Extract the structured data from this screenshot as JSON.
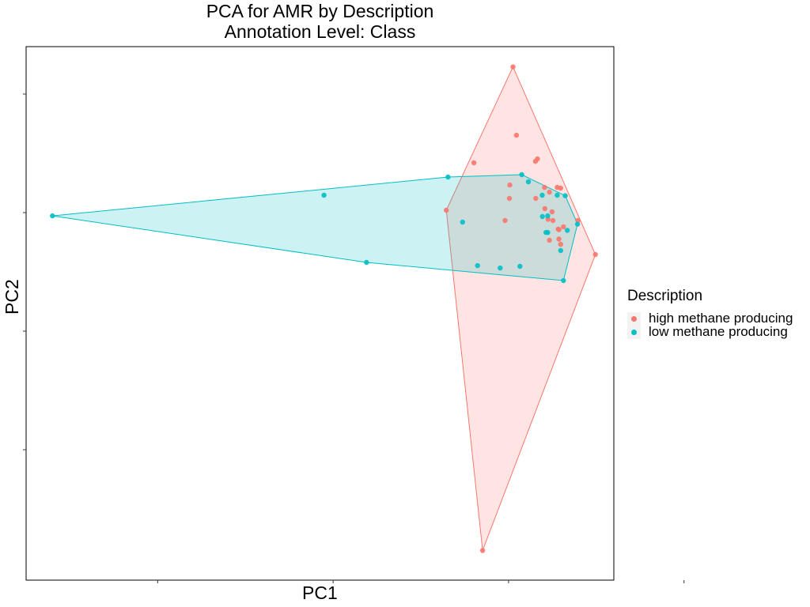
{
  "chart_data": {
    "type": "scatter",
    "title": "PCA for AMR by Description",
    "subtitle": "Annotation Level: Class",
    "xlabel": "PC1",
    "ylabel": "PC2",
    "xlim": [
      -0.55,
      0.12
    ],
    "ylim": [
      -0.62,
      0.28
    ],
    "grid": false,
    "legend": {
      "title": "Description",
      "placement": "right"
    },
    "hull": true,
    "series": [
      {
        "name": "high methane producing",
        "color": "#F8766D",
        "points": [
          [
            0.005,
            0.2458
          ],
          [
            0.009,
            0.1306
          ],
          [
            0.0306,
            0.0866
          ],
          [
            0.033,
            0.0906
          ],
          [
            -0.0395,
            0.084
          ],
          [
            -0.071,
            0.004
          ],
          [
            0.079,
            -0.0134
          ],
          [
            0.099,
            -0.0707
          ],
          [
            -0.0296,
            -0.57
          ],
          [
            0.0014,
            0.0466
          ],
          [
            0.041,
            0.0426
          ],
          [
            0.0466,
            0.0346
          ],
          [
            0.0594,
            0.0413
          ],
          [
            0.0414,
            0.0066
          ],
          [
            0.0554,
            0.0426
          ],
          [
            0.0496,
            0.0013
          ],
          [
            0.045,
            -0.0114
          ],
          [
            0.0506,
            -0.0134
          ],
          [
            0.0626,
            -0.024
          ],
          [
            0.0566,
            -0.028
          ],
          [
            0.0466,
            -0.0467
          ],
          [
            0.0594,
            -0.0534
          ],
          [
            0.0574,
            -0.0287
          ],
          [
            -0.004,
            -0.0134
          ],
          [
            0.001,
            0.024
          ],
          [
            0.031,
            0.024
          ],
          [
            0.0574,
            -0.0447
          ]
        ]
      },
      {
        "name": "low methane producing",
        "color": "#00BFC4",
        "points": [
          [
            -0.52,
            -0.0054
          ],
          [
            -0.2104,
            0.0293
          ],
          [
            -0.162,
            -0.084
          ],
          [
            -0.069,
            0.06
          ],
          [
            -0.0524,
            -0.016
          ],
          [
            -0.0354,
            -0.0894
          ],
          [
            -0.0096,
            -0.0934
          ],
          [
            0.013,
            -0.0907
          ],
          [
            0.0626,
            -0.1147
          ],
          [
            0.015,
            0.064
          ],
          [
            0.0226,
            0.052
          ],
          [
            0.0384,
            0.0293
          ],
          [
            0.0554,
            0.0293
          ],
          [
            0.0646,
            0.0286
          ],
          [
            0.0446,
            -0.0054
          ],
          [
            0.0426,
            -0.0334
          ],
          [
            0.0446,
            -0.0334
          ],
          [
            0.067,
            -0.03
          ],
          [
            0.0594,
            -0.064
          ],
          [
            0.0786,
            -0.0194
          ],
          [
            0.0386,
            -0.0067
          ]
        ]
      }
    ]
  }
}
